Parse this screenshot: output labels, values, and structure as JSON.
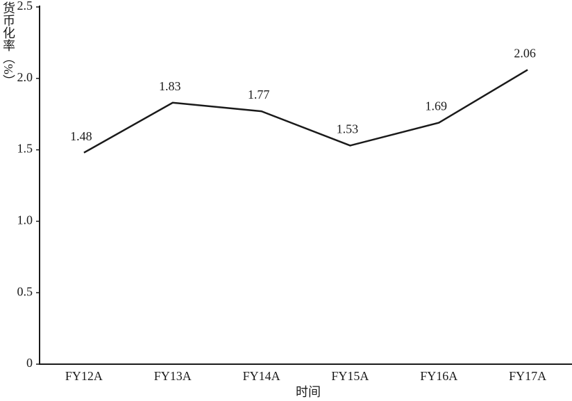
{
  "chart_data": {
    "type": "line",
    "y_label": "货币化率（%）",
    "x_label": "时间",
    "categories": [
      "FY12A",
      "FY13A",
      "FY14A",
      "FY15A",
      "FY16A",
      "FY17A"
    ],
    "values": [
      1.48,
      1.83,
      1.77,
      1.53,
      1.69,
      2.06
    ],
    "color": "#1a1a1a",
    "ylim": [
      0,
      2.5
    ],
    "yticks": [
      0,
      0.5,
      {
        "value": 1.0,
        "label": "1.0"
      },
      1.5,
      {
        "value": 2.0,
        "label": "2.0"
      },
      2.5
    ]
  }
}
